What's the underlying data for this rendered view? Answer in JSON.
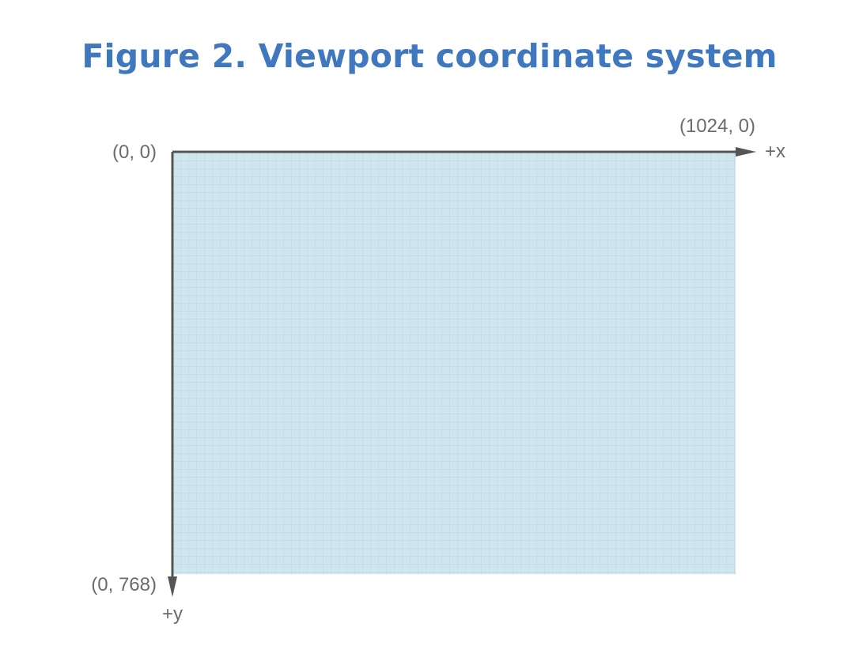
{
  "figure": {
    "title": "Figure 2. Viewport coordinate system"
  },
  "diagram": {
    "origin_label": "(0, 0)",
    "top_right_label": "(1024, 0)",
    "bottom_left_label": "(0, 768)",
    "x_axis_label": "+x",
    "y_axis_label": "+y",
    "viewport_width": 1024,
    "viewport_height": 768
  },
  "colors": {
    "title": "#3f78bf",
    "viewport_fill": "#cfe6ee",
    "grid_line": "#b9d7e2",
    "axis": "#555555",
    "label": "#6b6b6b"
  }
}
